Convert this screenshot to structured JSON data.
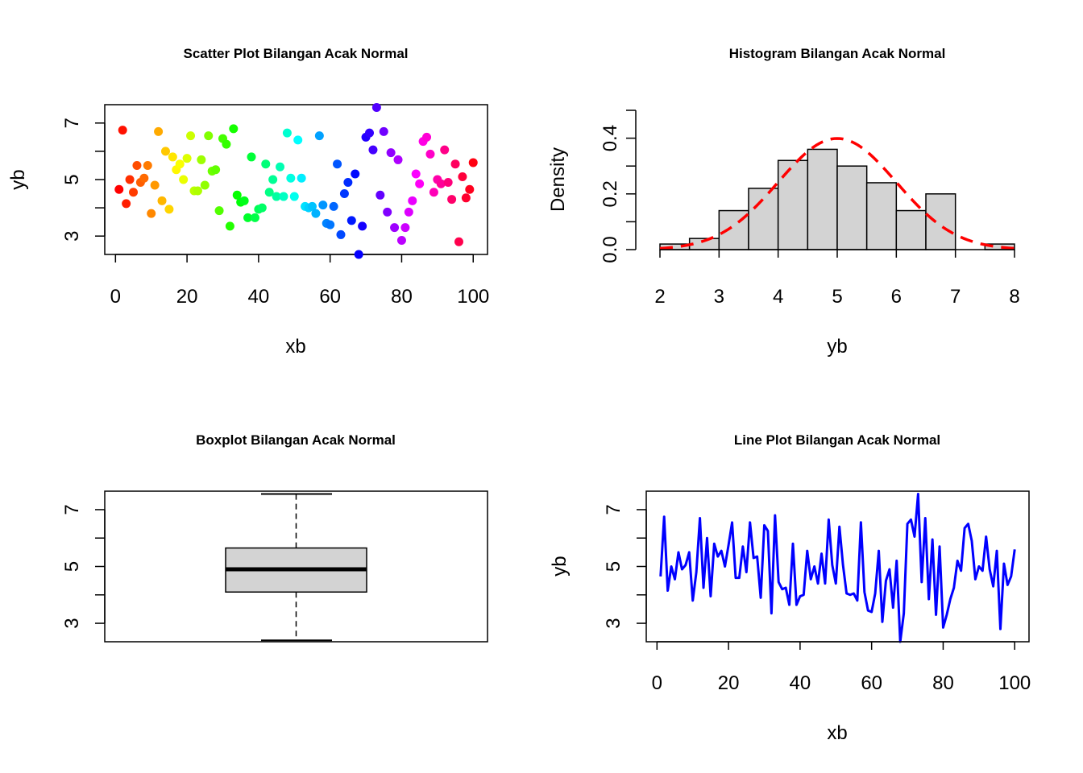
{
  "chart_data": [
    {
      "type": "scatter",
      "title": "Scatter Plot Bilangan Acak Normal",
      "xlabel": "xb",
      "ylabel": "yb",
      "xlim": [
        -3,
        104
      ],
      "ylim": [
        2.35,
        7.65
      ],
      "xticks": [
        "0",
        "20",
        "40",
        "60",
        "80",
        "100"
      ],
      "yticks": [
        "3",
        "5",
        "7"
      ],
      "color": "rainbow",
      "x": [
        1,
        2,
        3,
        4,
        5,
        6,
        7,
        8,
        9,
        10,
        11,
        12,
        13,
        14,
        15,
        16,
        17,
        18,
        19,
        20,
        21,
        22,
        23,
        24,
        25,
        26,
        27,
        28,
        29,
        30,
        31,
        32,
        33,
        34,
        35,
        36,
        37,
        38,
        39,
        40,
        41,
        42,
        43,
        44,
        45,
        46,
        47,
        48,
        49,
        50,
        51,
        52,
        53,
        54,
        55,
        56,
        57,
        58,
        59,
        60,
        61,
        62,
        63,
        64,
        65,
        66,
        67,
        68,
        69,
        70,
        71,
        72,
        73,
        74,
        75,
        76,
        77,
        78,
        79,
        80,
        81,
        82,
        83,
        84,
        85,
        86,
        87,
        88,
        89,
        90,
        91,
        92,
        93,
        94,
        95,
        96,
        97,
        98,
        99,
        100
      ],
      "y": [
        4.65,
        6.75,
        4.15,
        5.0,
        4.55,
        5.5,
        4.9,
        5.05,
        5.5,
        3.8,
        4.8,
        6.7,
        4.25,
        6.0,
        3.95,
        5.8,
        5.35,
        5.55,
        5.0,
        5.75,
        6.55,
        4.6,
        4.6,
        5.7,
        4.8,
        6.55,
        5.3,
        5.35,
        3.9,
        6.45,
        6.25,
        3.35,
        6.8,
        4.45,
        4.2,
        4.25,
        3.65,
        5.8,
        3.65,
        3.95,
        4.0,
        5.55,
        4.55,
        5.0,
        4.4,
        5.45,
        4.4,
        6.65,
        5.05,
        4.4,
        6.4,
        5.05,
        4.05,
        4.0,
        4.05,
        3.8,
        6.55,
        4.1,
        3.45,
        3.4,
        4.05,
        5.55,
        3.05,
        4.5,
        4.9,
        3.55,
        5.2,
        2.35,
        3.35,
        6.5,
        6.65,
        6.05,
        7.55,
        4.45,
        6.7,
        3.85,
        5.95,
        3.3,
        5.7,
        2.85,
        3.3,
        3.85,
        4.25,
        5.2,
        4.85,
        6.35,
        6.5,
        5.9,
        4.55,
        5.0,
        4.85,
        6.05,
        4.9,
        4.3,
        5.55,
        2.8,
        5.1,
        4.35,
        4.65,
        5.6
      ]
    },
    {
      "type": "bar",
      "subtype": "histogram",
      "title": "Histogram Bilangan Acak Normal",
      "xlabel": "yb",
      "ylabel": "Density",
      "xlim": [
        2,
        8
      ],
      "ylim": [
        0,
        0.5
      ],
      "xticks": [
        "2",
        "3",
        "4",
        "5",
        "6",
        "7",
        "8"
      ],
      "yticks": [
        "0.0",
        "0.2",
        "0.4"
      ],
      "bin_edges": [
        2,
        2.5,
        3,
        3.5,
        4,
        4.5,
        5,
        5.5,
        6,
        6.5,
        7,
        7.5,
        8
      ],
      "values": [
        0.02,
        0.04,
        0.14,
        0.22,
        0.32,
        0.36,
        0.3,
        0.24,
        0.14,
        0.2,
        0.0,
        0.02
      ],
      "density_curve": {
        "type": "normal",
        "mean": 5.0,
        "sd": 1.0,
        "color": "#ff0000",
        "style": "dashed"
      }
    },
    {
      "type": "boxplot",
      "title": "Boxplot Bilangan Acak Normal",
      "ylim": [
        2.35,
        7.65
      ],
      "yticks": [
        "3",
        "5",
        "7"
      ],
      "whisker_low": 2.4,
      "q1": 4.1,
      "median": 4.9,
      "q3": 5.65,
      "whisker_high": 7.55,
      "box_color": "#d3d3d3"
    },
    {
      "type": "line",
      "title": "Line Plot Bilangan Acak Normal",
      "xlabel": "xb",
      "ylabel": "yb",
      "xlim": [
        -3,
        104
      ],
      "ylim": [
        2.35,
        7.65
      ],
      "xticks": [
        "0",
        "20",
        "40",
        "60",
        "80",
        "100"
      ],
      "yticks": [
        "3",
        "5",
        "7"
      ],
      "color": "#0000ff",
      "source": "same series as scatter plot"
    }
  ]
}
